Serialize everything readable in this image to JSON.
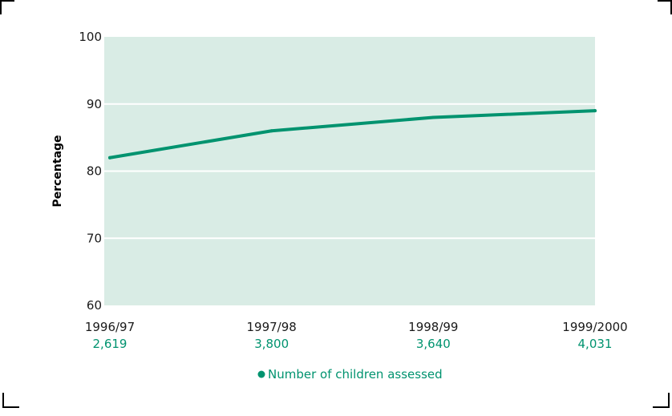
{
  "chart_data": {
    "type": "line",
    "categories": [
      "1996/97",
      "1997/98",
      "1998/99",
      "1999/2000"
    ],
    "series": [
      {
        "name": "",
        "values": [
          82,
          86,
          88,
          89
        ]
      }
    ],
    "counts": [
      "2,619",
      "3,800",
      "3,640",
      "4,031"
    ],
    "ylabel": "Percentage",
    "xlabel": "",
    "ylim": [
      60,
      100
    ],
    "yticks": [
      60,
      70,
      80,
      90,
      100
    ],
    "grid": true,
    "legend": {
      "label": "Number of children assessed",
      "position": "bottom-center"
    },
    "colors": {
      "line": "#00936f",
      "plot_background": "#d9ece5",
      "grid": "#ffffff",
      "count_text": "#00936f",
      "frame": "#000000"
    }
  }
}
